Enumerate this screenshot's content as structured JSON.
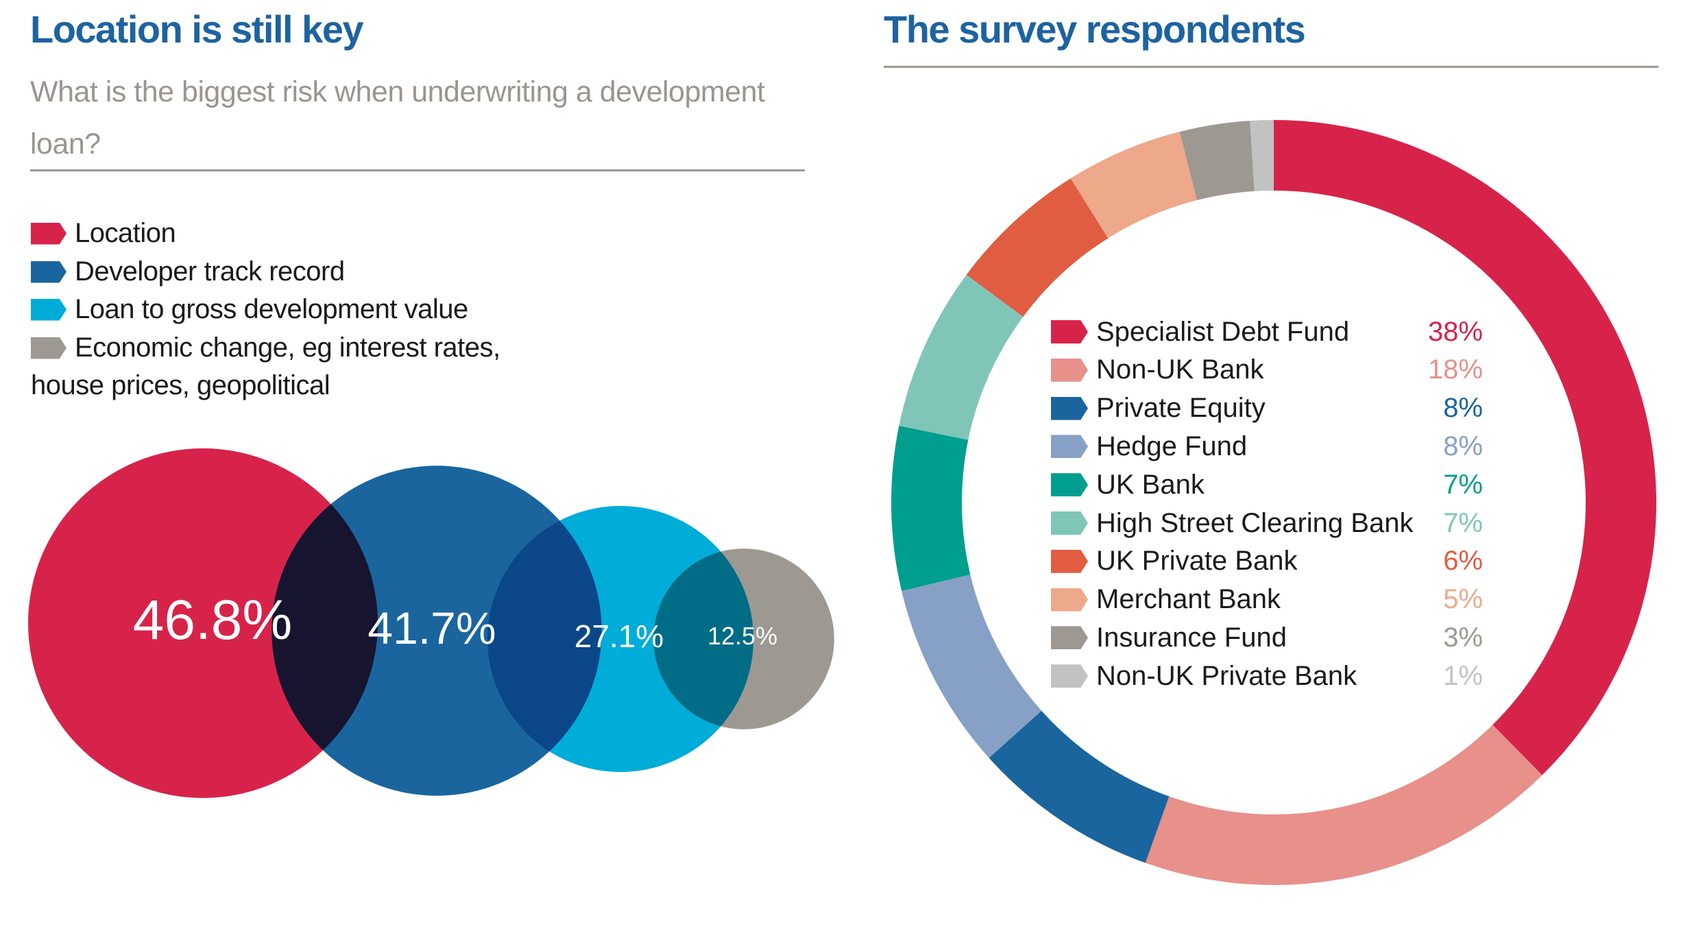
{
  "left": {
    "title": "Location is still key",
    "subtitle": "What is the biggest risk when underwriting a development loan?",
    "legend": [
      {
        "label": "Location",
        "color": "#d7234a"
      },
      {
        "label": "Developer track record",
        "color": "#1a659e"
      },
      {
        "label": "Loan to gross development value",
        "color": "#00acd8"
      },
      {
        "label": "Economic change, eg interest rates,",
        "color": "#9d9892"
      }
    ],
    "legend_wrap": "house prices, geopolitical"
  },
  "right": {
    "title": "The survey respondents"
  },
  "chart_data": [
    {
      "type": "bubble-overlap",
      "title": "Location is still key",
      "subtitle": "What is the biggest risk when underwriting a development loan?",
      "categories": [
        "Location",
        "Developer track record",
        "Loan to gross development value",
        "Economic change, eg interest rates, house prices, geopolitical"
      ],
      "values": [
        46.8,
        41.7,
        27.1,
        12.5
      ],
      "labels": [
        "46.8%",
        "41.7%",
        "27.1%",
        "12.5%"
      ],
      "colors": [
        "#d7234a",
        "#1a659e",
        "#00acd8",
        "#9d9892"
      ],
      "overlap_colors": [
        "#16142f",
        "#0b4688",
        "#006c86"
      ]
    },
    {
      "type": "pie",
      "donut": true,
      "title": "The survey respondents",
      "start": "top",
      "direction": "clockwise",
      "legend_placement": "center",
      "categories": [
        "Specialist Debt Fund",
        "Non-UK Bank",
        "Private Equity",
        "Hedge Fund",
        "UK Bank",
        "High Street Clearing Bank",
        "UK Private Bank",
        "Merchant Bank",
        "Insurance Fund",
        "Non-UK Private Bank"
      ],
      "values": [
        38,
        18,
        8,
        8,
        7,
        7,
        6,
        5,
        3,
        1
      ],
      "labels": [
        "38%",
        "18%",
        "8%",
        "8%",
        "7%",
        "7%",
        "6%",
        "5%",
        "3%",
        "1%"
      ],
      "colors": [
        "#d7234a",
        "#e8908a",
        "#1a659e",
        "#87a0c6",
        "#009e8e",
        "#80c6b8",
        "#e05d42",
        "#eea88a",
        "#9d9892",
        "#c2c2c2"
      ]
    }
  ]
}
